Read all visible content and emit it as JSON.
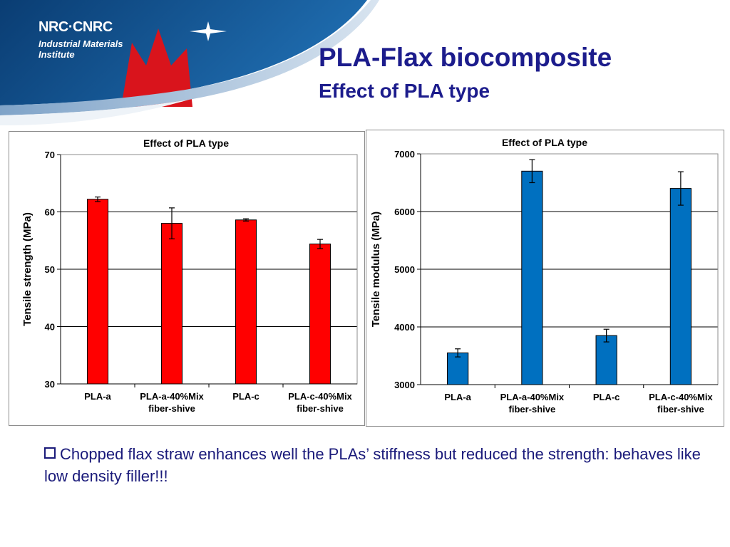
{
  "header": {
    "logo": {
      "line1": "NRC·CNRC",
      "line2": "Industrial Materials",
      "line3": "Institute"
    },
    "title": "PLA-Flax biocomposite",
    "subtitle": "Effect of PLA type"
  },
  "colors": {
    "banner_blue": "#0b4a86",
    "maple_red": "#d9141c",
    "title_blue": "#1c1c8c",
    "bar_red": "#ff0000",
    "bar_blue": "#0070c0"
  },
  "chart_data": [
    {
      "type": "bar",
      "title": "Effect of PLA type",
      "ylabel": "Tensile strength (MPa)",
      "xlabel": "",
      "ylim": [
        30,
        70
      ],
      "yticks": [
        "30",
        "40",
        "50",
        "60",
        "70"
      ],
      "categories": [
        [
          "PLA-a"
        ],
        [
          "PLA-a-40%Mix",
          "fiber-shive"
        ],
        [
          "PLA-c"
        ],
        [
          "PLA-c-40%Mix",
          "fiber-shive"
        ]
      ],
      "values": [
        62.2,
        58.0,
        58.6,
        54.4
      ],
      "errors": [
        0.4,
        2.7,
        0.2,
        0.8
      ],
      "color": "#ff0000",
      "grid": true,
      "legend": "none"
    },
    {
      "type": "bar",
      "title": "Effect of PLA type",
      "ylabel": "Tensile modulus (MPa)",
      "xlabel": "",
      "ylim": [
        3000,
        7000
      ],
      "yticks": [
        "3000",
        "4000",
        "5000",
        "6000",
        "7000"
      ],
      "categories": [
        [
          "PLA-a"
        ],
        [
          "PLA-a-40%Mix",
          "fiber-shive"
        ],
        [
          "PLA-c"
        ],
        [
          "PLA-c-40%Mix",
          "fiber-shive"
        ]
      ],
      "values": [
        3550,
        6700,
        3850,
        6400
      ],
      "errors": [
        70,
        200,
        110,
        290
      ],
      "color": "#0070c0",
      "grid": true,
      "legend": "none"
    }
  ],
  "note": {
    "text": "Chopped flax straw enhances well the PLAs’ stiffness but reduced the strength: behaves like low density filler!!!"
  }
}
